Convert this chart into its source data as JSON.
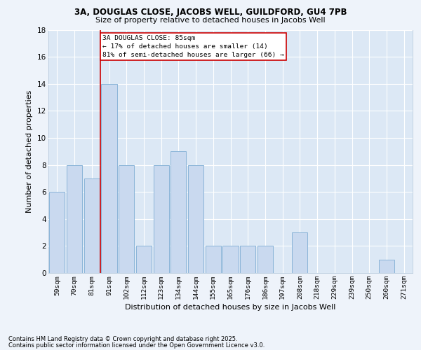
{
  "title1": "3A, DOUGLAS CLOSE, JACOBS WELL, GUILDFORD, GU4 7PB",
  "title2": "Size of property relative to detached houses in Jacobs Well",
  "xlabel": "Distribution of detached houses by size in Jacobs Well",
  "ylabel": "Number of detached properties",
  "categories": [
    "59sqm",
    "70sqm",
    "81sqm",
    "91sqm",
    "102sqm",
    "112sqm",
    "123sqm",
    "134sqm",
    "144sqm",
    "155sqm",
    "165sqm",
    "176sqm",
    "186sqm",
    "197sqm",
    "208sqm",
    "218sqm",
    "229sqm",
    "239sqm",
    "250sqm",
    "260sqm",
    "271sqm"
  ],
  "values": [
    6,
    8,
    7,
    14,
    8,
    2,
    8,
    9,
    8,
    2,
    2,
    2,
    2,
    0,
    3,
    0,
    0,
    0,
    0,
    1,
    0
  ],
  "bar_color": "#c9d9ef",
  "bar_edge_color": "#8ab4d8",
  "background_color": "#dce8f5",
  "grid_color": "#ffffff",
  "vline_color": "#cc0000",
  "annotation_text": "3A DOUGLAS CLOSE: 85sqm\n← 17% of detached houses are smaller (14)\n81% of semi-detached houses are larger (66) →",
  "annotation_box_color": "#cc0000",
  "ylim": [
    0,
    18
  ],
  "yticks": [
    0,
    2,
    4,
    6,
    8,
    10,
    12,
    14,
    16,
    18
  ],
  "footer1": "Contains HM Land Registry data © Crown copyright and database right 2025.",
  "footer2": "Contains public sector information licensed under the Open Government Licence v3.0.",
  "fig_bg": "#eef3fa"
}
